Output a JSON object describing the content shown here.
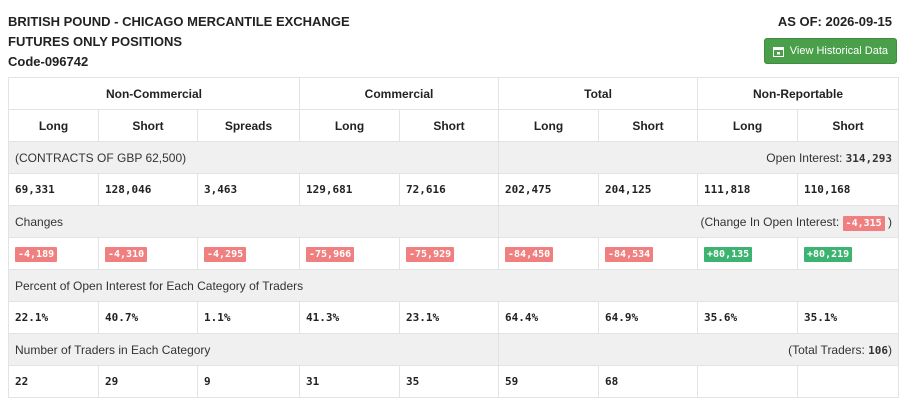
{
  "header": {
    "title_line1": "BRITISH POUND - CHICAGO MERCANTILE EXCHANGE",
    "title_line2": "FUTURES ONLY POSITIONS",
    "code": "Code-096742",
    "as_of": "AS OF: 2026-09-15",
    "history_button": "View Historical Data",
    "history_icon": "calendar-icon"
  },
  "groups": [
    "Non-Commercial",
    "Commercial",
    "Total",
    "Non-Reportable"
  ],
  "columns": [
    "Long",
    "Short",
    "Spreads",
    "Long",
    "Short",
    "Long",
    "Short",
    "Long",
    "Short"
  ],
  "contracts": {
    "label": "(CONTRACTS OF GBP 62,500)",
    "oi_label": "Open Interest:",
    "oi_value": "314,293",
    "values": [
      "69,331",
      "128,046",
      "3,463",
      "129,681",
      "72,616",
      "202,475",
      "204,125",
      "111,818",
      "110,168"
    ]
  },
  "changes": {
    "label": "Changes",
    "oi_label_open": "(Change In Open Interest:",
    "oi_value": "-4,315",
    "oi_label_close": ")",
    "values": [
      "-4,189",
      "-4,310",
      "-4,295",
      "-75,966",
      "-75,929",
      "-84,450",
      "-84,534",
      "+80,135",
      "+80,219"
    ],
    "colors": {
      "negative": "#f08080",
      "positive": "#3cb371"
    }
  },
  "percent": {
    "label": "Percent of Open Interest for Each Category of Traders",
    "values": [
      "22.1%",
      "40.7%",
      "1.1%",
      "41.3%",
      "23.1%",
      "64.4%",
      "64.9%",
      "35.6%",
      "35.1%"
    ]
  },
  "traders": {
    "label": "Number of Traders in Each Category",
    "total_label_open": "(Total Traders:",
    "total_value": "106",
    "total_label_close": ")",
    "values": [
      "22",
      "29",
      "9",
      "31",
      "35",
      "59",
      "68",
      "",
      ""
    ]
  },
  "colors": {
    "button": "#4a9f4a",
    "section_bg": "#f0f0f0",
    "border": "#e3e3e3"
  }
}
